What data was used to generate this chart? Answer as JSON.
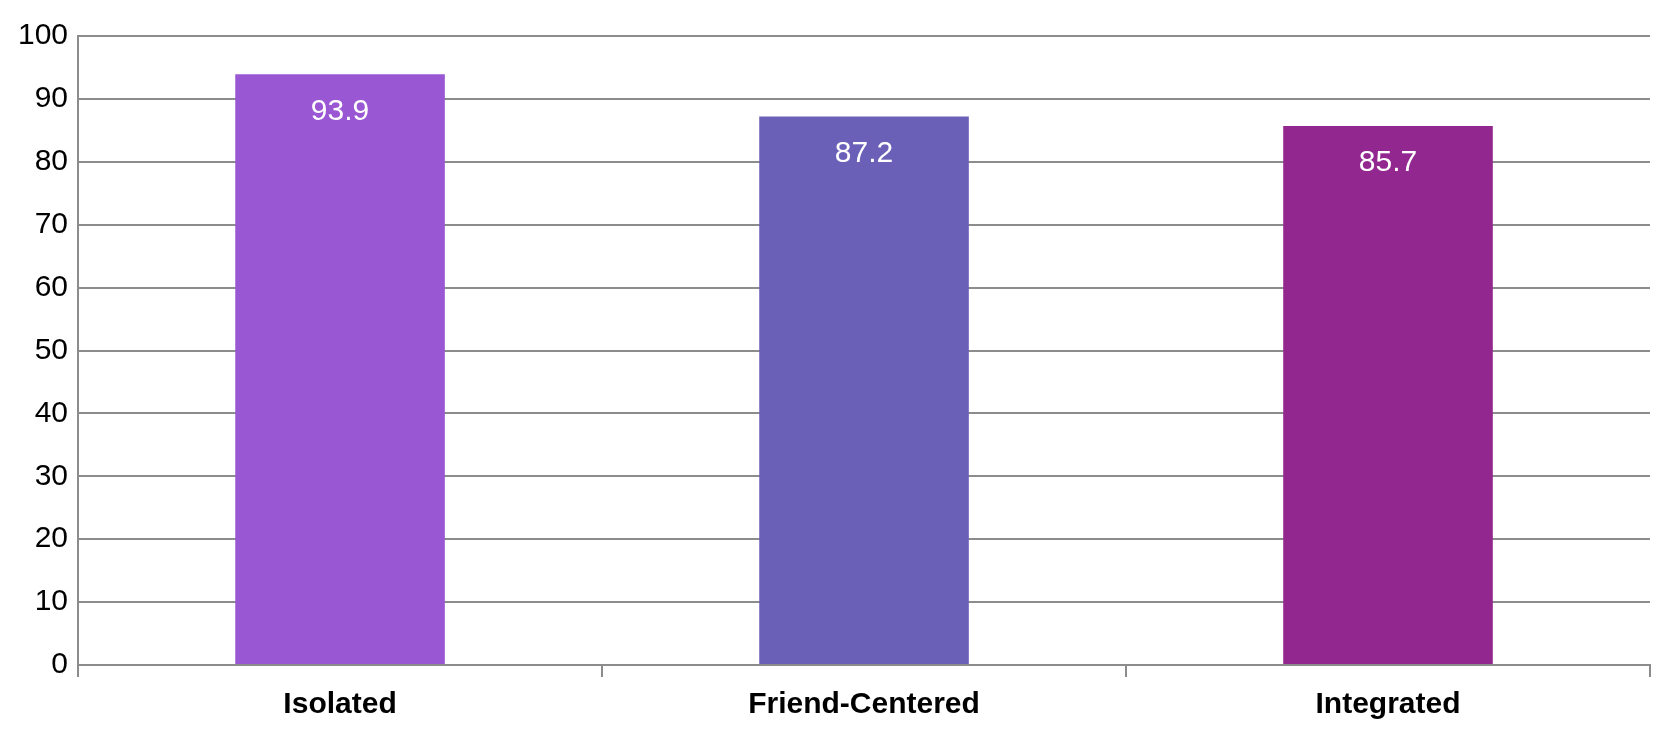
{
  "chart_data": {
    "type": "bar",
    "categories": [
      "Isolated",
      "Friend-Centered",
      "Integrated"
    ],
    "values": [
      93.9,
      87.2,
      85.7
    ],
    "colors": [
      "#9a57d3",
      "#6a60b8",
      "#92278f"
    ],
    "ylim": [
      0,
      100
    ],
    "yticks": [
      0,
      10,
      20,
      30,
      40,
      50,
      60,
      70,
      80,
      90,
      100
    ],
    "grid": "y",
    "data_labels": true
  }
}
